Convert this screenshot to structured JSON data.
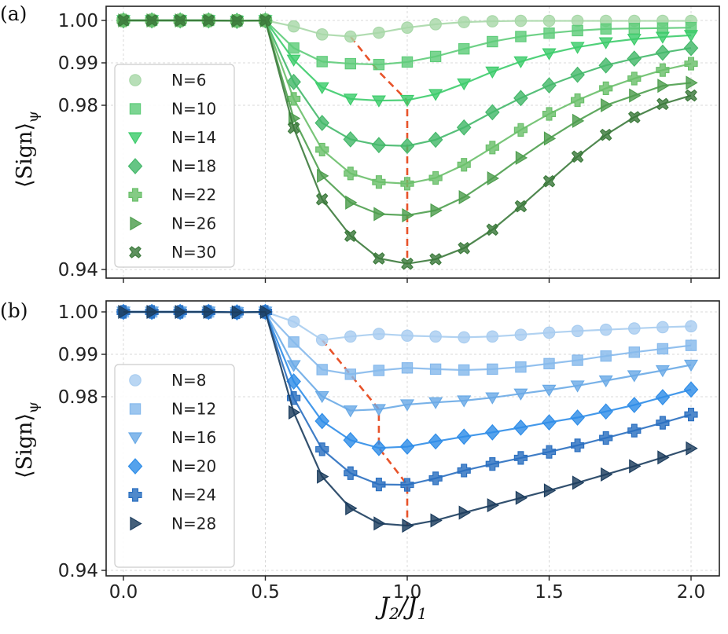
{
  "chart_data": [
    {
      "panel_label": "(a)",
      "type": "line",
      "xlabel": "J2/J1",
      "ylabel": "⟨Sign⟩ψ",
      "ylim": [
        0.94,
        1.0
      ],
      "xlim": [
        0.0,
        2.0
      ],
      "yticks": [
        "0.94",
        "0.98",
        "0.99",
        "1.00"
      ],
      "xticks": [
        "0.0",
        "0.5",
        "1.0",
        "1.5",
        "2.0"
      ],
      "grid": true,
      "legend_position": "left",
      "x": [
        0.0,
        0.1,
        0.2,
        0.3,
        0.4,
        0.5,
        0.6,
        0.7,
        0.8,
        0.9,
        1.0,
        1.1,
        1.2,
        1.3,
        1.4,
        1.5,
        1.6,
        1.7,
        1.8,
        1.9,
        2.0
      ],
      "series": [
        {
          "name": "N=6",
          "marker": "circle",
          "color": "#a8d8a8",
          "values": [
            1.0,
            1.0,
            1.0,
            1.0,
            0.9999,
            1.0,
            0.9986,
            0.9967,
            0.9962,
            0.9971,
            0.9983,
            0.9991,
            0.9996,
            0.9998,
            0.9999,
            0.9999,
            0.9999,
            0.9999,
            0.9999,
            0.9999,
            0.9999
          ]
        },
        {
          "name": "N=10",
          "marker": "square",
          "color": "#5fcc7a",
          "values": [
            1.0,
            1.0,
            1.0,
            1.0,
            0.9999,
            1.0,
            0.9935,
            0.9903,
            0.9898,
            0.9896,
            0.9902,
            0.9915,
            0.9933,
            0.995,
            0.9962,
            0.997,
            0.9976,
            0.998,
            0.9981,
            0.9982,
            0.9983
          ]
        },
        {
          "name": "N=14",
          "marker": "tri-down",
          "color": "#3dcc6b",
          "values": [
            1.0,
            1.0,
            1.0,
            1.0,
            0.9999,
            1.0,
            0.9907,
            0.9842,
            0.9815,
            0.9811,
            0.9812,
            0.9826,
            0.9851,
            0.9879,
            0.9903,
            0.9922,
            0.9937,
            0.9948,
            0.9956,
            0.9961,
            0.9965
          ]
        },
        {
          "name": "N=18",
          "marker": "diamond",
          "color": "#44b86a",
          "values": [
            1.0,
            1.0,
            1.0,
            1.0,
            0.9999,
            1.0,
            0.9855,
            0.9757,
            0.9717,
            0.9703,
            0.9701,
            0.9716,
            0.9746,
            0.9783,
            0.9817,
            0.9847,
            0.9872,
            0.9894,
            0.991,
            0.9924,
            0.9935
          ]
        },
        {
          "name": "N=22",
          "marker": "plus",
          "color": "#6abf6a",
          "values": [
            1.0,
            1.0,
            1.0,
            1.0,
            0.9999,
            1.0,
            0.9815,
            0.9692,
            0.9634,
            0.9613,
            0.9609,
            0.9623,
            0.9655,
            0.9697,
            0.974,
            0.9779,
            0.9812,
            0.984,
            0.9863,
            0.9883,
            0.9898
          ]
        },
        {
          "name": "N=26",
          "marker": "tri-right",
          "color": "#4e9e4e",
          "values": [
            1.0,
            1.0,
            1.0,
            1.0,
            0.9999,
            1.0,
            0.9768,
            0.9628,
            0.9563,
            0.9535,
            0.9532,
            0.9544,
            0.9576,
            0.9622,
            0.9672,
            0.9719,
            0.9762,
            0.98,
            0.9823,
            0.9846,
            0.9853
          ]
        },
        {
          "name": "N=30",
          "marker": "x",
          "color": "#3c7a3c",
          "values": [
            1.0,
            1.0,
            1.0,
            1.0,
            0.9999,
            1.0,
            0.9745,
            0.9571,
            0.9482,
            0.9427,
            0.9414,
            0.9425,
            0.9452,
            0.9497,
            0.9554,
            0.9615,
            0.9675,
            0.9728,
            0.9771,
            0.9803,
            0.9823
          ]
        }
      ],
      "dashed_line": {
        "color": "#e8532a",
        "x": [
          0.8,
          0.9,
          1.0,
          1.0
        ],
        "y": [
          0.9962,
          0.9879,
          0.9811,
          0.9414
        ]
      }
    },
    {
      "panel_label": "(b)",
      "type": "line",
      "xlabel": "J2/J1",
      "ylabel": "⟨Sign⟩ψ",
      "ylim": [
        0.94,
        1.0
      ],
      "xlim": [
        0.0,
        2.0
      ],
      "yticks": [
        "0.94",
        "0.98",
        "0.99",
        "1.00"
      ],
      "xticks": [
        "0.0",
        "0.5",
        "1.0",
        "1.5",
        "2.0"
      ],
      "grid": true,
      "legend_position": "left",
      "x": [
        0.0,
        0.1,
        0.2,
        0.3,
        0.4,
        0.5,
        0.6,
        0.7,
        0.8,
        0.9,
        1.0,
        1.1,
        1.2,
        1.3,
        1.4,
        1.5,
        1.6,
        1.7,
        1.8,
        1.9,
        2.0
      ],
      "series": [
        {
          "name": "N=8",
          "marker": "circle",
          "color": "#a9cdf0",
          "values": [
            1.0,
            1.0,
            1.0,
            1.0,
            0.9999,
            1.0,
            0.9977,
            0.9934,
            0.9942,
            0.9948,
            0.9944,
            0.9942,
            0.994,
            0.9942,
            0.9946,
            0.9951,
            0.9955,
            0.9958,
            0.9961,
            0.9964,
            0.9966
          ]
        },
        {
          "name": "N=12",
          "marker": "square",
          "color": "#86b9ec",
          "values": [
            1.0,
            1.0,
            1.0,
            1.0,
            0.9999,
            1.0,
            0.9929,
            0.9864,
            0.9853,
            0.9862,
            0.9868,
            0.9865,
            0.9863,
            0.9865,
            0.987,
            0.9878,
            0.9886,
            0.9896,
            0.9905,
            0.9913,
            0.9921
          ]
        },
        {
          "name": "N=16",
          "marker": "tri-down",
          "color": "#6aaae6",
          "values": [
            1.0,
            1.0,
            1.0,
            1.0,
            0.9999,
            1.0,
            0.9874,
            0.9801,
            0.9768,
            0.9771,
            0.9782,
            0.9787,
            0.9791,
            0.9798,
            0.9807,
            0.9816,
            0.9826,
            0.9838,
            0.985,
            0.9862,
            0.9875
          ]
        },
        {
          "name": "N=20",
          "marker": "diamond",
          "color": "#2f8de8",
          "values": [
            1.0,
            1.0,
            1.0,
            1.0,
            0.9999,
            1.0,
            0.9836,
            0.9744,
            0.97,
            0.9682,
            0.9685,
            0.9697,
            0.9708,
            0.9718,
            0.9729,
            0.9741,
            0.9752,
            0.9766,
            0.9781,
            0.9799,
            0.9817
          ]
        },
        {
          "name": "N=24",
          "marker": "plus",
          "color": "#2a6fc0",
          "values": [
            1.0,
            1.0,
            1.0,
            1.0,
            0.9999,
            1.0,
            0.9797,
            0.9679,
            0.9624,
            0.9598,
            0.9597,
            0.9612,
            0.963,
            0.9645,
            0.9659,
            0.9673,
            0.9688,
            0.9705,
            0.9722,
            0.974,
            0.9759
          ]
        },
        {
          "name": "N=28",
          "marker": "tri-right",
          "color": "#1c3d5e",
          "values": [
            1.0,
            1.0,
            1.0,
            1.0,
            0.9999,
            1.0,
            0.9764,
            0.9616,
            0.9543,
            0.9508,
            0.9503,
            0.9515,
            0.9533,
            0.955,
            0.9567,
            0.9584,
            0.9602,
            0.9621,
            0.964,
            0.966,
            0.9681
          ]
        }
      ],
      "dashed_line": {
        "color": "#e8532a",
        "x": [
          0.7,
          0.9,
          0.9,
          1.0,
          1.0
        ],
        "y": [
          0.9934,
          0.9771,
          0.9682,
          0.9597,
          0.9503
        ]
      }
    }
  ]
}
